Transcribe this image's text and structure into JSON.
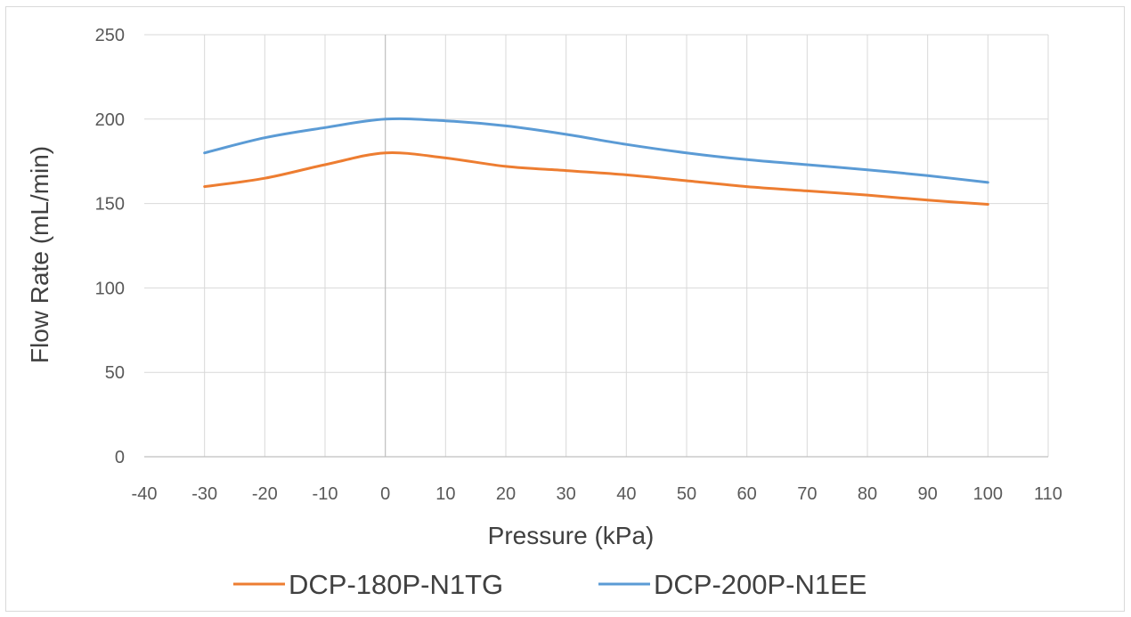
{
  "chart_data": {
    "type": "line",
    "title": "",
    "xlabel": "Pressure (kPa)",
    "ylabel": "Flow Rate (mL/min)",
    "xlim": [
      -40,
      110
    ],
    "ylim": [
      0,
      250
    ],
    "x_ticks": [
      -40,
      -30,
      -20,
      -10,
      0,
      10,
      20,
      30,
      40,
      50,
      60,
      70,
      80,
      90,
      100,
      110
    ],
    "y_ticks": [
      0,
      50,
      100,
      150,
      200,
      250
    ],
    "grid": true,
    "legend_position": "bottom",
    "x": [
      -30,
      -20,
      -10,
      0,
      10,
      20,
      30,
      40,
      50,
      60,
      70,
      80,
      90,
      100
    ],
    "series": [
      {
        "name": "DCP-180P-N1TG",
        "color": "#ED7D31",
        "values": [
          160,
          165,
          173,
          180,
          177,
          172,
          169.5,
          167,
          163.5,
          160,
          157.5,
          155,
          152,
          149.5
        ]
      },
      {
        "name": "DCP-200P-N1EE",
        "color": "#5B9BD5",
        "values": [
          180,
          189,
          195,
          200,
          199,
          196,
          191,
          185,
          180,
          176,
          173,
          170,
          166.5,
          162.5
        ]
      }
    ]
  }
}
